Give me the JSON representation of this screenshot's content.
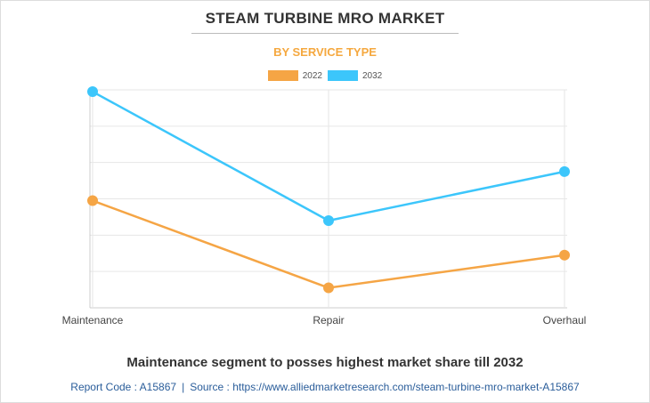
{
  "header": {
    "title": "STEAM TURBINE MRO MARKET",
    "subtitle": "BY SERVICE TYPE"
  },
  "chart_data": {
    "type": "line",
    "title": "STEAM TURBINE MRO MARKET",
    "subtitle": "BY SERVICE TYPE",
    "categories": [
      "Maintenance",
      "Repair",
      "Overhaul"
    ],
    "series": [
      {
        "name": "2022",
        "color": "#f5a545",
        "values": [
          29.5,
          5.5,
          14.5
        ]
      },
      {
        "name": "2032",
        "color": "#3cc6fb",
        "values": [
          59.5,
          24.0,
          37.5
        ]
      }
    ],
    "ylim": [
      0,
      60
    ],
    "ygrid_step": 10,
    "xlabel": "",
    "ylabel": "",
    "grid": true,
    "legend_position": "top-center"
  },
  "footer": {
    "caption": "Maintenance segment to posses highest market share till 2032",
    "report_code": "Report Code : A15867",
    "separator": "|",
    "source": "Source : https://www.alliedmarketresearch.com/steam-turbine-mro-market-A15867"
  }
}
